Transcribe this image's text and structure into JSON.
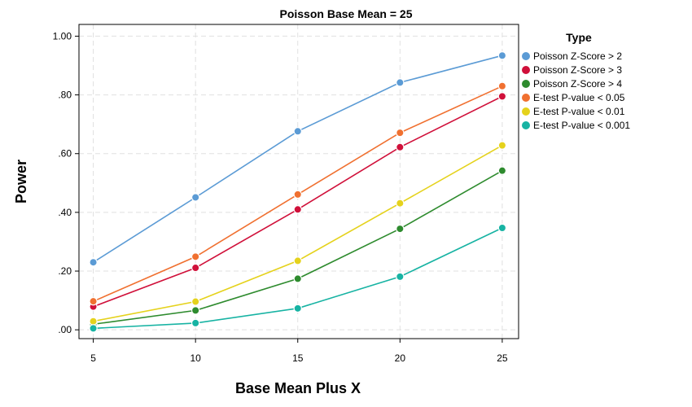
{
  "chart_data": {
    "type": "line",
    "title": "Poisson Base Mean = 25",
    "xlabel": "Base Mean Plus X",
    "ylabel": "Power",
    "x": [
      5,
      10,
      15,
      20,
      25
    ],
    "x_ticks": [
      5,
      10,
      15,
      20,
      25
    ],
    "x_tick_labels": [
      "5",
      "10",
      "15",
      "20",
      "25"
    ],
    "y_ticks": [
      0,
      0.2,
      0.4,
      0.6,
      0.8,
      1.0
    ],
    "y_tick_labels": [
      ".00",
      ".20",
      ".40",
      ".60",
      ".80",
      "1.00"
    ],
    "xlim": [
      4.3,
      25.8
    ],
    "ylim": [
      -0.03,
      1.04
    ],
    "grid": true,
    "legend_title": "Type",
    "legend_position": "right",
    "series": [
      {
        "name": "Poisson Z-Score > 2",
        "color": "#5b9bd5",
        "values": [
          0.23,
          0.451,
          0.676,
          0.842,
          0.934
        ]
      },
      {
        "name": "Poisson Z-Score > 3",
        "color": "#d0103a",
        "values": [
          0.079,
          0.211,
          0.41,
          0.622,
          0.795
        ]
      },
      {
        "name": "Poisson Z-Score > 4",
        "color": "#2e8b2e",
        "values": [
          0.019,
          0.066,
          0.174,
          0.344,
          0.542
        ]
      },
      {
        "name": "E-test P-value < 0.05",
        "color": "#f07030",
        "values": [
          0.097,
          0.249,
          0.461,
          0.671,
          0.83
        ]
      },
      {
        "name": "E-test P-value < 0.01",
        "color": "#e5d21c",
        "values": [
          0.029,
          0.096,
          0.235,
          0.431,
          0.628
        ]
      },
      {
        "name": "E-test P-value < 0.001",
        "color": "#17b3a3",
        "values": [
          0.005,
          0.023,
          0.073,
          0.181,
          0.347
        ]
      }
    ]
  }
}
